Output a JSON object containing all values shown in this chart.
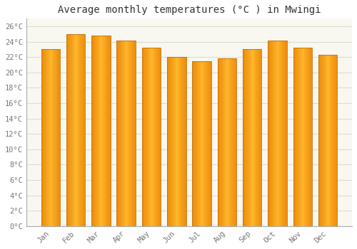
{
  "title": "Average monthly temperatures (°C ) in Mwingi",
  "months": [
    "Jan",
    "Feb",
    "Mar",
    "Apr",
    "May",
    "Jun",
    "Jul",
    "Aug",
    "Sep",
    "Oct",
    "Nov",
    "Dec"
  ],
  "values": [
    23.0,
    25.0,
    24.8,
    24.2,
    23.2,
    22.0,
    21.5,
    21.8,
    23.0,
    24.2,
    23.2,
    22.3
  ],
  "bar_color_center": "#FFB733",
  "bar_color_edge": "#E8870A",
  "background_color": "#ffffff",
  "plot_bg_color": "#f8f8f0",
  "grid_color": "#ddddcc",
  "ytick_min": 0,
  "ytick_max": 27,
  "ytick_step": 2,
  "title_fontsize": 10,
  "tick_fontsize": 7.5,
  "font_family": "monospace"
}
